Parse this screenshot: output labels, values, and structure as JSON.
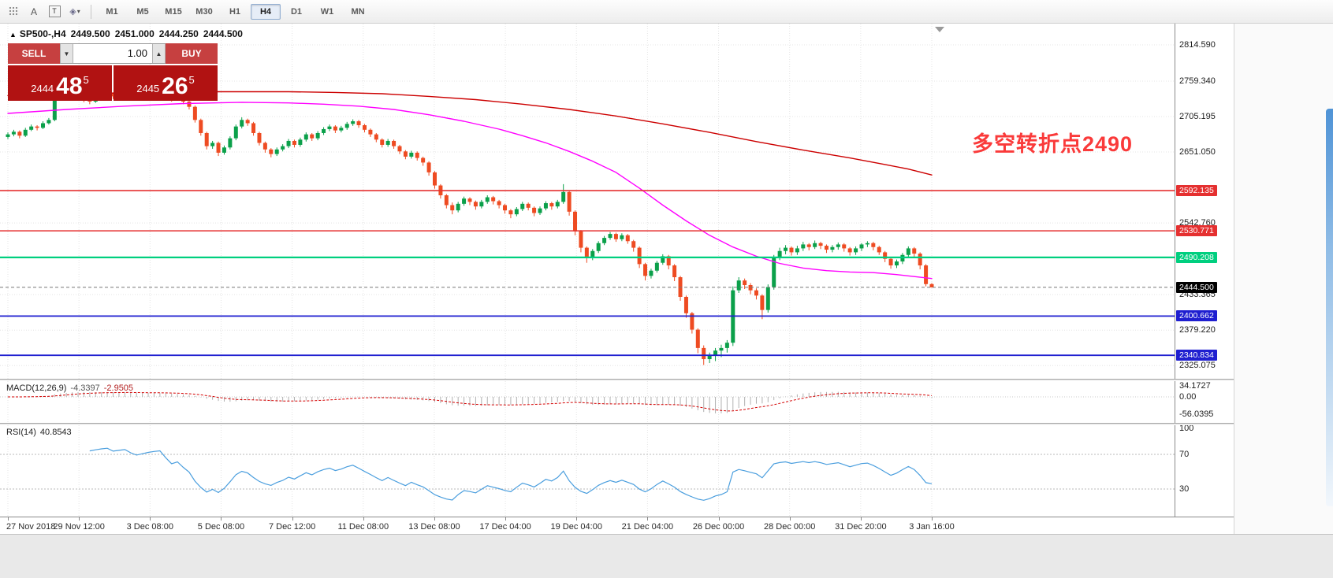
{
  "toolbar": {
    "a_glyph": "A",
    "t_glyph": "T",
    "shapes_glyph": "◈",
    "caret_glyph": "▾",
    "timeframes": [
      {
        "label": "M1",
        "selected": false
      },
      {
        "label": "M5",
        "selected": false
      },
      {
        "label": "M15",
        "selected": false
      },
      {
        "label": "M30",
        "selected": false
      },
      {
        "label": "H1",
        "selected": false
      },
      {
        "label": "H4",
        "selected": true
      },
      {
        "label": "D1",
        "selected": false
      },
      {
        "label": "W1",
        "selected": false
      },
      {
        "label": "MN",
        "selected": false
      }
    ]
  },
  "chart_header": {
    "marker": "▲",
    "title": "SP500-,H4",
    "open": "2449.500",
    "high": "2451.000",
    "low": "2444.250",
    "close": "2444.500"
  },
  "trade_panel": {
    "sell_label": "SELL",
    "buy_label": "BUY",
    "volume": "1.00",
    "step_down_glyph": "▼",
    "step_up_glyph": "▲",
    "bid": {
      "prefix": "2444",
      "big": "48",
      "sup": "5"
    },
    "ask": {
      "prefix": "2445",
      "big": "26",
      "sup": "5"
    }
  },
  "annotation": {
    "text": "多空转折点2490",
    "color": "#fa3a3a"
  },
  "price_axis": {
    "labels": [
      {
        "text": "2814.590",
        "value": 2814.59
      },
      {
        "text": "2759.340",
        "value": 2759.34
      },
      {
        "text": "2705.195",
        "value": 2705.195
      },
      {
        "text": "2651.050",
        "value": 2651.05
      },
      {
        "text": "2542.760",
        "value": 2542.76
      },
      {
        "text": "2433.365",
        "value": 2433.365
      },
      {
        "text": "2379.220",
        "value": 2379.22
      },
      {
        "text": "2325.075",
        "value": 2325.075
      }
    ]
  },
  "levels": [
    {
      "label": "2592.135",
      "price": 2592.135,
      "color": "#e53030",
      "width": 1.6
    },
    {
      "label": "2530.771",
      "price": 2530.771,
      "color": "#e53030",
      "width": 1.6
    },
    {
      "label": "2490.208",
      "price": 2490.208,
      "color": "#00cf7f",
      "width": 2.2
    },
    {
      "label": "2400.662",
      "price": 2400.662,
      "color": "#1f1fd0",
      "width": 1.8
    },
    {
      "label": "2340.834",
      "price": 2340.834,
      "color": "#1f1fd0",
      "width": 1.8
    }
  ],
  "current_price": {
    "label": "2444.500",
    "price": 2444.5,
    "line_color": "#777777",
    "tag_bg": "#000000"
  },
  "time_axis": {
    "labels": [
      "27 Nov 2018",
      "29 Nov 12:00",
      "3 Dec 08:00",
      "5 Dec 08:00",
      "7 Dec 12:00",
      "11 Dec 08:00",
      "13 Dec 08:00",
      "17 Dec 04:00",
      "19 Dec 04:00",
      "21 Dec 04:00",
      "26 Dec 00:00",
      "28 Dec 00:00",
      "31 Dec 20:00",
      "3 Jan 16:00"
    ]
  },
  "macd": {
    "label": "MACD(12,26,9)",
    "value_main": "-4.3397",
    "value_signal": "-2.9505",
    "fast": 12,
    "slow": 26,
    "signal_period": 9,
    "hist_color": "#b0b0b0",
    "signal_color": "#d40000",
    "axis": [
      {
        "text": "34.1727",
        "value": 34.1727
      },
      {
        "text": "0.00",
        "value": 0
      },
      {
        "text": "-56.0395",
        "value": -56.0395
      }
    ]
  },
  "rsi": {
    "label": "RSI(14)",
    "value": "40.8543",
    "period": 14,
    "line_color": "#4a9ede",
    "levels": [
      70,
      30
    ],
    "axis": [
      {
        "text": "100",
        "value": 100
      },
      {
        "text": "70",
        "value": 70
      },
      {
        "text": "30",
        "value": 30
      }
    ]
  },
  "chart_data": {
    "type": "candlestick",
    "symbol": "SP500-",
    "timeframe": "H4",
    "title": "SP500-,H4",
    "ylim": [
      2305,
      2847
    ],
    "up_color": "#0ba04a",
    "down_color": "#ee4b22",
    "candles": [
      [
        2674,
        2681,
        2671,
        2678
      ],
      [
        2678,
        2685,
        2675,
        2682
      ],
      [
        2682,
        2684,
        2672,
        2676
      ],
      [
        2676,
        2688,
        2674,
        2685
      ],
      [
        2685,
        2693,
        2683,
        2690
      ],
      [
        2690,
        2692,
        2684,
        2688
      ],
      [
        2688,
        2698,
        2686,
        2695
      ],
      [
        2695,
        2703,
        2693,
        2700
      ],
      [
        2700,
        2748,
        2698,
        2742
      ],
      [
        2742,
        2746,
        2734,
        2738
      ],
      [
        2738,
        2741,
        2731,
        2735
      ],
      [
        2735,
        2743,
        2733,
        2740
      ],
      [
        2740,
        2743,
        2732,
        2736
      ],
      [
        2736,
        2739,
        2727,
        2731
      ],
      [
        2731,
        2734,
        2724,
        2728
      ],
      [
        2728,
        2736,
        2726,
        2733
      ],
      [
        2733,
        2740,
        2731,
        2737
      ],
      [
        2737,
        2743,
        2735,
        2740
      ],
      [
        2740,
        2742,
        2732,
        2736
      ],
      [
        2736,
        2742,
        2734,
        2739
      ],
      [
        2739,
        2745,
        2737,
        2742
      ],
      [
        2742,
        2744,
        2734,
        2738
      ],
      [
        2738,
        2740,
        2731,
        2735
      ],
      [
        2735,
        2742,
        2733,
        2739
      ],
      [
        2739,
        2746,
        2737,
        2743
      ],
      [
        2743,
        2749,
        2741,
        2746
      ],
      [
        2746,
        2755,
        2744,
        2748
      ],
      [
        2748,
        2750,
        2736,
        2740
      ],
      [
        2740,
        2742,
        2728,
        2732
      ],
      [
        2732,
        2739,
        2730,
        2736
      ],
      [
        2736,
        2738,
        2724,
        2728
      ],
      [
        2728,
        2730,
        2716,
        2720
      ],
      [
        2720,
        2722,
        2696,
        2700
      ],
      [
        2700,
        2702,
        2676,
        2680
      ],
      [
        2680,
        2682,
        2655,
        2660
      ],
      [
        2660,
        2668,
        2656,
        2665
      ],
      [
        2665,
        2667,
        2645,
        2650
      ],
      [
        2650,
        2661,
        2647,
        2658
      ],
      [
        2658,
        2675,
        2655,
        2672
      ],
      [
        2672,
        2693,
        2669,
        2690
      ],
      [
        2690,
        2704,
        2687,
        2700
      ],
      [
        2700,
        2702,
        2691,
        2695
      ],
      [
        2695,
        2697,
        2676,
        2680
      ],
      [
        2680,
        2682,
        2661,
        2665
      ],
      [
        2665,
        2667,
        2650,
        2655
      ],
      [
        2655,
        2657,
        2643,
        2648
      ],
      [
        2648,
        2658,
        2645,
        2655
      ],
      [
        2655,
        2663,
        2652,
        2660
      ],
      [
        2660,
        2671,
        2657,
        2668
      ],
      [
        2668,
        2670,
        2658,
        2662
      ],
      [
        2662,
        2673,
        2659,
        2670
      ],
      [
        2670,
        2681,
        2667,
        2678
      ],
      [
        2678,
        2680,
        2668,
        2672
      ],
      [
        2672,
        2683,
        2669,
        2680
      ],
      [
        2680,
        2689,
        2677,
        2686
      ],
      [
        2686,
        2693,
        2683,
        2690
      ],
      [
        2690,
        2692,
        2680,
        2684
      ],
      [
        2684,
        2691,
        2681,
        2688
      ],
      [
        2688,
        2697,
        2685,
        2694
      ],
      [
        2694,
        2701,
        2691,
        2698
      ],
      [
        2698,
        2700,
        2688,
        2692
      ],
      [
        2692,
        2694,
        2681,
        2685
      ],
      [
        2685,
        2687,
        2674,
        2678
      ],
      [
        2678,
        2680,
        2666,
        2670
      ],
      [
        2670,
        2672,
        2658,
        2662
      ],
      [
        2662,
        2671,
        2659,
        2668
      ],
      [
        2668,
        2670,
        2656,
        2660
      ],
      [
        2660,
        2662,
        2648,
        2652
      ],
      [
        2652,
        2654,
        2640,
        2644
      ],
      [
        2644,
        2653,
        2641,
        2650
      ],
      [
        2650,
        2652,
        2638,
        2642
      ],
      [
        2642,
        2644,
        2630,
        2635
      ],
      [
        2635,
        2637,
        2615,
        2620
      ],
      [
        2620,
        2622,
        2595,
        2600
      ],
      [
        2600,
        2602,
        2580,
        2585
      ],
      [
        2585,
        2587,
        2565,
        2570
      ],
      [
        2570,
        2574,
        2556,
        2562
      ],
      [
        2562,
        2575,
        2559,
        2572
      ],
      [
        2572,
        2583,
        2569,
        2580
      ],
      [
        2580,
        2582,
        2570,
        2575
      ],
      [
        2575,
        2577,
        2563,
        2568
      ],
      [
        2568,
        2578,
        2565,
        2575
      ],
      [
        2575,
        2585,
        2572,
        2582
      ],
      [
        2582,
        2584,
        2571,
        2576
      ],
      [
        2576,
        2578,
        2565,
        2570
      ],
      [
        2570,
        2572,
        2557,
        2562
      ],
      [
        2562,
        2564,
        2550,
        2556
      ],
      [
        2556,
        2567,
        2553,
        2564
      ],
      [
        2564,
        2575,
        2561,
        2572
      ],
      [
        2572,
        2574,
        2562,
        2566
      ],
      [
        2566,
        2568,
        2553,
        2558
      ],
      [
        2558,
        2568,
        2555,
        2565
      ],
      [
        2565,
        2576,
        2562,
        2573
      ],
      [
        2573,
        2575,
        2563,
        2568
      ],
      [
        2568,
        2578,
        2565,
        2575
      ],
      [
        2575,
        2602,
        2572,
        2590
      ],
      [
        2590,
        2592,
        2554,
        2560
      ],
      [
        2560,
        2562,
        2524,
        2530
      ],
      [
        2530,
        2532,
        2498,
        2505
      ],
      [
        2505,
        2507,
        2482,
        2490
      ],
      [
        2490,
        2503,
        2486,
        2500
      ],
      [
        2500,
        2515,
        2497,
        2512
      ],
      [
        2512,
        2523,
        2509,
        2520
      ],
      [
        2520,
        2529,
        2517,
        2526
      ],
      [
        2526,
        2528,
        2514,
        2518
      ],
      [
        2518,
        2527,
        2515,
        2524
      ],
      [
        2524,
        2526,
        2511,
        2515
      ],
      [
        2515,
        2517,
        2499,
        2505
      ],
      [
        2505,
        2507,
        2474,
        2480
      ],
      [
        2480,
        2482,
        2455,
        2462
      ],
      [
        2462,
        2473,
        2458,
        2470
      ],
      [
        2470,
        2485,
        2467,
        2482
      ],
      [
        2482,
        2495,
        2479,
        2492
      ],
      [
        2492,
        2494,
        2472,
        2478
      ],
      [
        2478,
        2480,
        2454,
        2460
      ],
      [
        2460,
        2462,
        2424,
        2430
      ],
      [
        2430,
        2432,
        2398,
        2405
      ],
      [
        2405,
        2407,
        2374,
        2380
      ],
      [
        2380,
        2382,
        2344,
        2352
      ],
      [
        2352,
        2356,
        2326,
        2335
      ],
      [
        2335,
        2345,
        2329,
        2340
      ],
      [
        2340,
        2352,
        2332,
        2348
      ],
      [
        2348,
        2357,
        2338,
        2352
      ],
      [
        2352,
        2364,
        2345,
        2360
      ],
      [
        2360,
        2446,
        2355,
        2440
      ],
      [
        2440,
        2460,
        2436,
        2455
      ],
      [
        2455,
        2458,
        2442,
        2448
      ],
      [
        2448,
        2451,
        2434,
        2440
      ],
      [
        2440,
        2443,
        2426,
        2432
      ],
      [
        2432,
        2434,
        2396,
        2410
      ],
      [
        2410,
        2449,
        2406,
        2445
      ],
      [
        2445,
        2494,
        2441,
        2490
      ],
      [
        2490,
        2505,
        2486,
        2500
      ],
      [
        2500,
        2509,
        2495,
        2505
      ],
      [
        2505,
        2507,
        2493,
        2498
      ],
      [
        2498,
        2508,
        2494,
        2504
      ],
      [
        2504,
        2514,
        2500,
        2510
      ],
      [
        2510,
        2512,
        2501,
        2506
      ],
      [
        2506,
        2516,
        2503,
        2512
      ],
      [
        2512,
        2514,
        2503,
        2508
      ],
      [
        2508,
        2510,
        2497,
        2502
      ],
      [
        2502,
        2509,
        2498,
        2506
      ],
      [
        2506,
        2513,
        2502,
        2510
      ],
      [
        2510,
        2512,
        2499,
        2504
      ],
      [
        2504,
        2506,
        2493,
        2498
      ],
      [
        2498,
        2507,
        2494,
        2504
      ],
      [
        2504,
        2512,
        2500,
        2510
      ],
      [
        2510,
        2515,
        2506,
        2512
      ],
      [
        2512,
        2514,
        2501,
        2506
      ],
      [
        2506,
        2508,
        2494,
        2498
      ],
      [
        2498,
        2500,
        2483,
        2488
      ],
      [
        2488,
        2490,
        2473,
        2478
      ],
      [
        2478,
        2487,
        2474,
        2484
      ],
      [
        2484,
        2497,
        2480,
        2494
      ],
      [
        2494,
        2507,
        2490,
        2504
      ],
      [
        2504,
        2506,
        2491,
        2496
      ],
      [
        2496,
        2498,
        2472,
        2478
      ],
      [
        2478,
        2480,
        2446,
        2449.5
      ],
      [
        2449.5,
        2451,
        2444.25,
        2444.5
      ]
    ],
    "ma_fast": {
      "color": "#ff00ff",
      "points": [
        [
          0,
          2710
        ],
        [
          10,
          2716
        ],
        [
          20,
          2721
        ],
        [
          30,
          2725
        ],
        [
          40,
          2727
        ],
        [
          48,
          2726
        ],
        [
          54,
          2724
        ],
        [
          60,
          2721
        ],
        [
          66,
          2716
        ],
        [
          72,
          2708
        ],
        [
          78,
          2698
        ],
        [
          84,
          2686
        ],
        [
          88,
          2676
        ],
        [
          92,
          2665
        ],
        [
          96,
          2652
        ],
        [
          100,
          2637
        ],
        [
          104,
          2620
        ],
        [
          108,
          2596
        ],
        [
          112,
          2570
        ],
        [
          116,
          2546
        ],
        [
          120,
          2524
        ],
        [
          124,
          2506
        ],
        [
          128,
          2492
        ],
        [
          132,
          2481
        ],
        [
          136,
          2474
        ],
        [
          140,
          2470
        ],
        [
          144,
          2468
        ],
        [
          148,
          2467
        ],
        [
          152,
          2464
        ],
        [
          155,
          2461
        ],
        [
          158,
          2458
        ]
      ]
    },
    "ma_slow": {
      "color": "#cc0000",
      "points": [
        [
          0,
          2737
        ],
        [
          12,
          2740
        ],
        [
          24,
          2742
        ],
        [
          36,
          2743
        ],
        [
          48,
          2743
        ],
        [
          56,
          2742
        ],
        [
          64,
          2740
        ],
        [
          72,
          2736
        ],
        [
          80,
          2731
        ],
        [
          88,
          2724
        ],
        [
          96,
          2716
        ],
        [
          104,
          2706
        ],
        [
          112,
          2694
        ],
        [
          120,
          2681
        ],
        [
          128,
          2667
        ],
        [
          136,
          2654
        ],
        [
          144,
          2642
        ],
        [
          150,
          2632
        ],
        [
          154,
          2625
        ],
        [
          158,
          2616
        ]
      ]
    }
  }
}
